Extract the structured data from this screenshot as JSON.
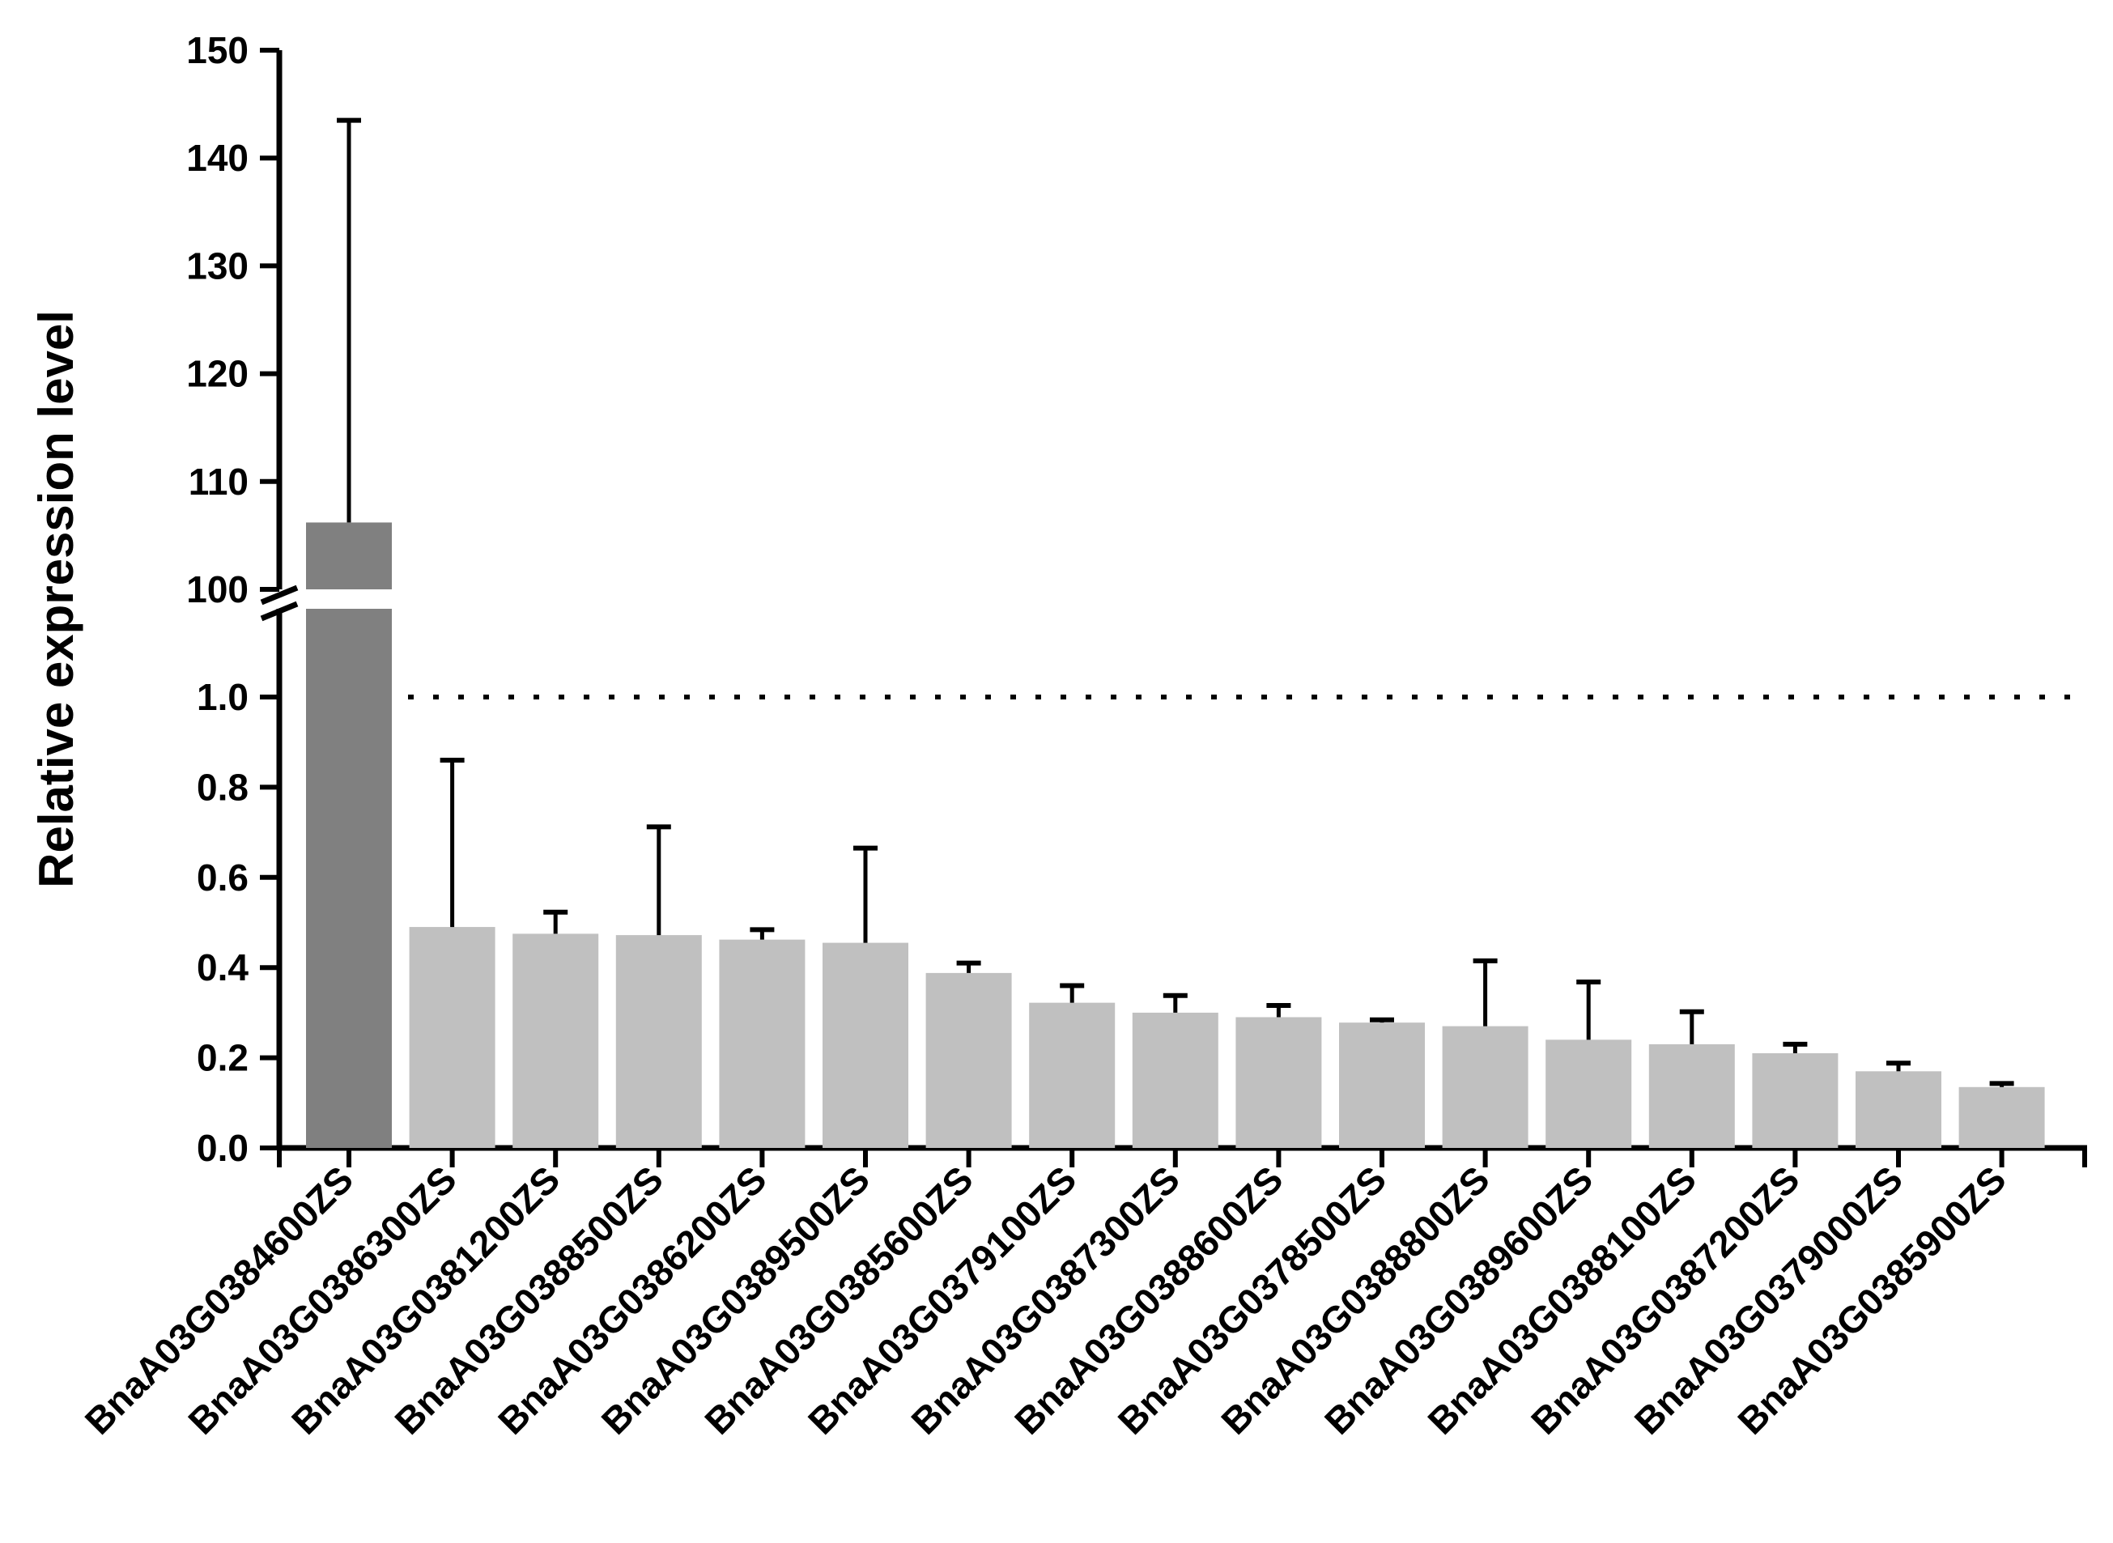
{
  "chart_data": {
    "type": "bar",
    "ylabel": "Relative expression level",
    "xlabel": "",
    "title": "",
    "y_axis_broken": true,
    "ylim_lower_segment": [
      0,
      1.2
    ],
    "ylim_upper_segment": [
      100,
      150
    ],
    "yticks_lower": [
      0.0,
      0.2,
      0.4,
      0.6,
      0.8,
      1.0
    ],
    "yticks_upper": [
      100,
      110,
      120,
      130,
      140,
      150
    ],
    "ytick_labels_lower": [
      "0.0",
      "0.2",
      "0.4",
      "0.6",
      "0.8",
      "1.0"
    ],
    "ytick_labels_upper": [
      "100",
      "110",
      "120",
      "130",
      "140",
      "150"
    ],
    "reference_line": {
      "y": 1.0,
      "style": "dotted"
    },
    "categories": [
      "BnaA03G0384600ZS",
      "BnaA03G0386300ZS",
      "BnaA03G0381200ZS",
      "BnaA03G0388500ZS",
      "BnaA03G0386200ZS",
      "BnaA03G0389500ZS",
      "BnaA03G0385600ZS",
      "BnaA03G0379100ZS",
      "BnaA03G0387300ZS",
      "BnaA03G0388600ZS",
      "BnaA03G0378500ZS",
      "BnaA03G0388800ZS",
      "BnaA03G0389600ZS",
      "BnaA03G0388100ZS",
      "BnaA03G0387200ZS",
      "BnaA03G0379000ZS",
      "BnaA03G0385900ZS"
    ],
    "values": [
      106.2,
      0.49,
      0.475,
      0.472,
      0.462,
      0.455,
      0.388,
      0.322,
      0.3,
      0.29,
      0.278,
      0.27,
      0.24,
      0.23,
      0.21,
      0.17,
      0.135
    ],
    "errors": [
      37.3,
      0.37,
      0.048,
      0.24,
      0.022,
      0.21,
      0.022,
      0.038,
      0.038,
      0.026,
      0.006,
      0.145,
      0.128,
      0.072,
      0.02,
      0.018,
      0.008
    ],
    "colors": {
      "highlight": "#808080",
      "default": "#c0c0c0",
      "axis": "#000000"
    },
    "grid": false,
    "legend": "none"
  }
}
